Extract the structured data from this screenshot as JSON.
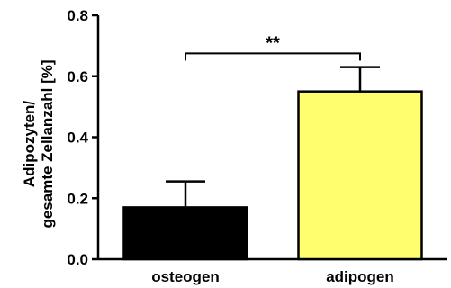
{
  "chart_data": {
    "type": "bar",
    "title": "",
    "xlabel": "",
    "ylabel_lines": [
      "Adipozyten/",
      "gesamte Zellanzahl [%]"
    ],
    "categories": [
      "osteogen",
      "adipogen"
    ],
    "values": [
      0.17,
      0.55
    ],
    "errors": [
      0.085,
      0.08
    ],
    "colors": [
      "#000000",
      "#fefe6e"
    ],
    "ylim": [
      0.0,
      0.8
    ],
    "yticks": [
      0.0,
      0.2,
      0.4,
      0.6,
      0.8
    ],
    "ytick_labels": [
      "0.0",
      "0.2",
      "0.4",
      "0.6",
      "0.8"
    ],
    "grid": false,
    "significance": {
      "between": [
        0,
        1
      ],
      "label": "**",
      "y": 0.675
    }
  }
}
